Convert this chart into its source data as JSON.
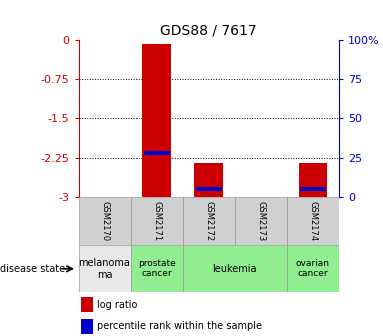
{
  "title": "GDS88 / 7617",
  "samples": [
    "GSM2170",
    "GSM2171",
    "GSM2172",
    "GSM2173",
    "GSM2174"
  ],
  "log_ratio": [
    0.0,
    -0.08,
    -2.35,
    0.0,
    -2.35
  ],
  "percentile_rank": [
    0.0,
    28.0,
    5.0,
    0.0,
    5.0
  ],
  "yticks_left": [
    0,
    -0.75,
    -1.5,
    -2.25,
    -3
  ],
  "yticks_right": [
    100,
    75,
    50,
    25,
    0
  ],
  "disease_groups": [
    {
      "label": "melanoma\nma",
      "indices": [
        0
      ],
      "color": "#e8e8e8",
      "fontsize": 7
    },
    {
      "label": "prostate\ncancer",
      "indices": [
        1
      ],
      "color": "#90ee90",
      "fontsize": 6.5
    },
    {
      "label": "leukemia",
      "indices": [
        2,
        3
      ],
      "color": "#90ee90",
      "fontsize": 7
    },
    {
      "label": "ovarian\ncancer",
      "indices": [
        4
      ],
      "color": "#90ee90",
      "fontsize": 6.5
    }
  ],
  "bar_color_red": "#cc0000",
  "bar_color_blue": "#0000cc",
  "bar_width": 0.55,
  "baseline": -3.0,
  "left_axis_color": "#cc0000",
  "right_axis_color": "#0000bb",
  "legend_red_label": "log ratio",
  "legend_blue_label": "percentile rank within the sample",
  "grid_ticks": [
    -0.75,
    -1.5,
    -2.25
  ],
  "disease_state_label": "disease state"
}
